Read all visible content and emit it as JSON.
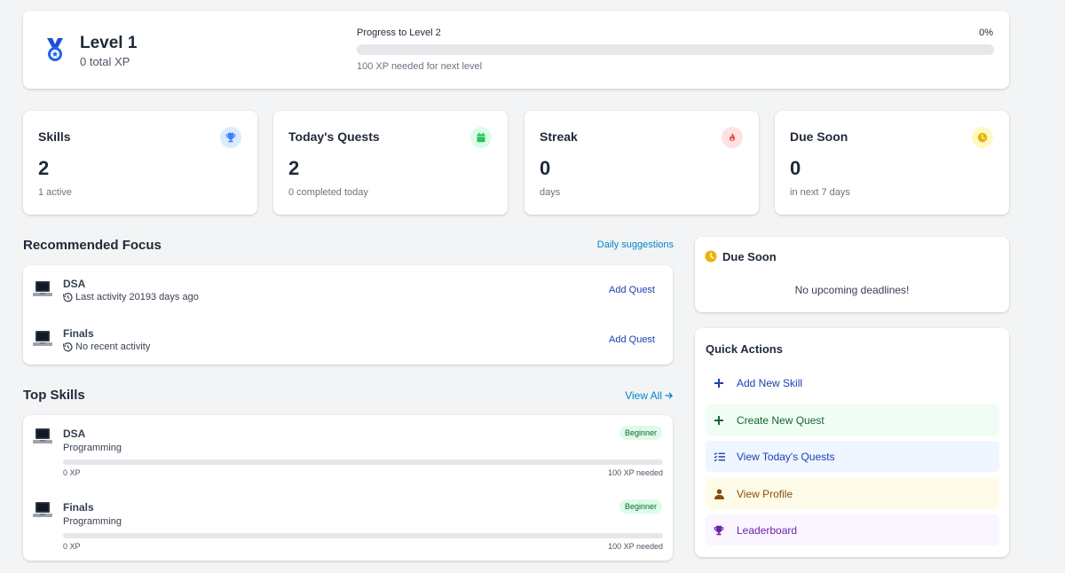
{
  "level": {
    "title": "Level 1",
    "total_xp": "0 total XP",
    "progress_label": "Progress to Level 2",
    "progress_pct": "0%",
    "progress_value": 0,
    "progress_note": "100 XP needed for next level"
  },
  "stats": [
    {
      "title": "Skills",
      "value": "2",
      "sub": "1 active",
      "icon": "trophy-icon",
      "color": "#3b82f6",
      "bg": "#dbeafe"
    },
    {
      "title": "Today's Quests",
      "value": "2",
      "sub": "0 completed today",
      "icon": "calendar-icon",
      "color": "#22c55e",
      "bg": "#dcfce7"
    },
    {
      "title": "Streak",
      "value": "0",
      "sub": "days",
      "icon": "fire-icon",
      "color": "#ef4444",
      "bg": "#fee2e2"
    },
    {
      "title": "Due Soon",
      "value": "0",
      "sub": "in next 7 days",
      "icon": "clock-icon",
      "color": "#eab308",
      "bg": "#fef9c3"
    }
  ],
  "focus": {
    "title": "Recommended Focus",
    "link": "Daily suggestions",
    "items": [
      {
        "name": "DSA",
        "activity": "Last activity 20193 days ago",
        "action": "Add Quest"
      },
      {
        "name": "Finals",
        "activity": "No recent activity",
        "action": "Add Quest"
      }
    ]
  },
  "skills": {
    "title": "Top Skills",
    "link": "View All",
    "items": [
      {
        "name": "DSA",
        "category": "Programming",
        "badge": "Beginner",
        "xp": "0 XP",
        "needed": "100 XP needed",
        "progress": 0
      },
      {
        "name": "Finals",
        "category": "Programming",
        "badge": "Beginner",
        "xp": "0 XP",
        "needed": "100 XP needed",
        "progress": 0
      }
    ]
  },
  "due": {
    "title": "Due Soon",
    "empty": "No upcoming deadlines!"
  },
  "quick_actions": {
    "title": "Quick Actions",
    "items": [
      {
        "label": "Add New Skill",
        "icon": "plus-icon",
        "color": "#1e40af",
        "bg": "#ffffff"
      },
      {
        "label": "Create New Quest",
        "icon": "plus-icon",
        "color": "#166534",
        "bg": "#f0fdf4"
      },
      {
        "label": "View Today's Quests",
        "icon": "list-check-icon",
        "color": "#1e40af",
        "bg": "#eff6ff"
      },
      {
        "label": "View Profile",
        "icon": "user-icon",
        "color": "#854d0e",
        "bg": "#fefce8"
      },
      {
        "label": "Leaderboard",
        "icon": "trophy-icon",
        "color": "#6b21a8",
        "bg": "#faf5ff"
      }
    ]
  }
}
